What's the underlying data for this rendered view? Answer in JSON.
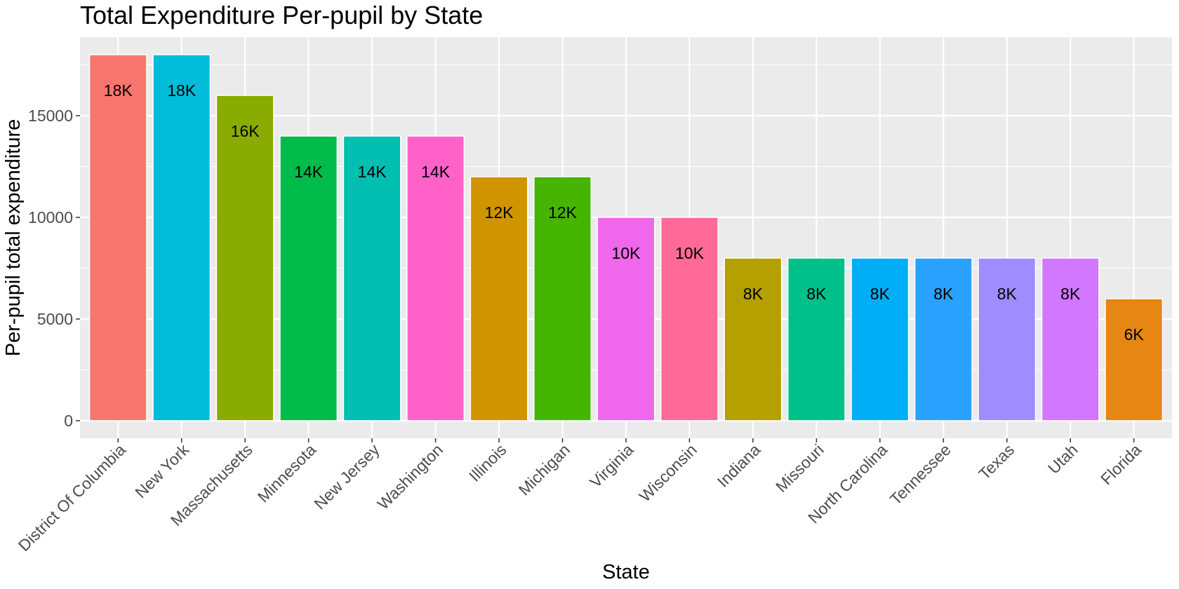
{
  "chart_data": {
    "type": "bar",
    "title": "Total Expenditure Per-pupil by State",
    "xlabel": "State",
    "ylabel": "Per-pupil total expenditure",
    "ylim": [
      0,
      19000
    ],
    "yticks": [
      0,
      5000,
      10000,
      15000
    ],
    "grid": true,
    "legend": "none",
    "panel_background": "#EBEBEB",
    "grid_color": "#FFFFFF",
    "bar_outline": "#FFFFFF",
    "categories": [
      "District Of Columbia",
      "New York",
      "Massachusetts",
      "Minnesota",
      "New Jersey",
      "Washington",
      "Illinois",
      "Michigan",
      "Virginia",
      "Wisconsin",
      "Indiana",
      "Missouri",
      "North Carolina",
      "Tennessee",
      "Texas",
      "Utah",
      "Florida"
    ],
    "values": [
      18000,
      18000,
      16000,
      14000,
      14000,
      14000,
      12000,
      12000,
      10000,
      10000,
      8000,
      8000,
      8000,
      8000,
      8000,
      8000,
      6000
    ],
    "labels": [
      "18K",
      "18K",
      "16K",
      "14K",
      "14K",
      "14K",
      "12K",
      "12K",
      "10K",
      "10K",
      "8K",
      "8K",
      "8K",
      "8K",
      "8K",
      "8K",
      "6K"
    ],
    "colors": [
      "#F8766D",
      "#00BCD8",
      "#8AAB00",
      "#00BA4A",
      "#00BFB0",
      "#FF61C9",
      "#D09400",
      "#45B500",
      "#EF67EB",
      "#FF6A98",
      "#B4A000",
      "#00C089",
      "#00AEF5",
      "#2BA1FF",
      "#9F8CFF",
      "#D277FF",
      "#E68613"
    ]
  }
}
